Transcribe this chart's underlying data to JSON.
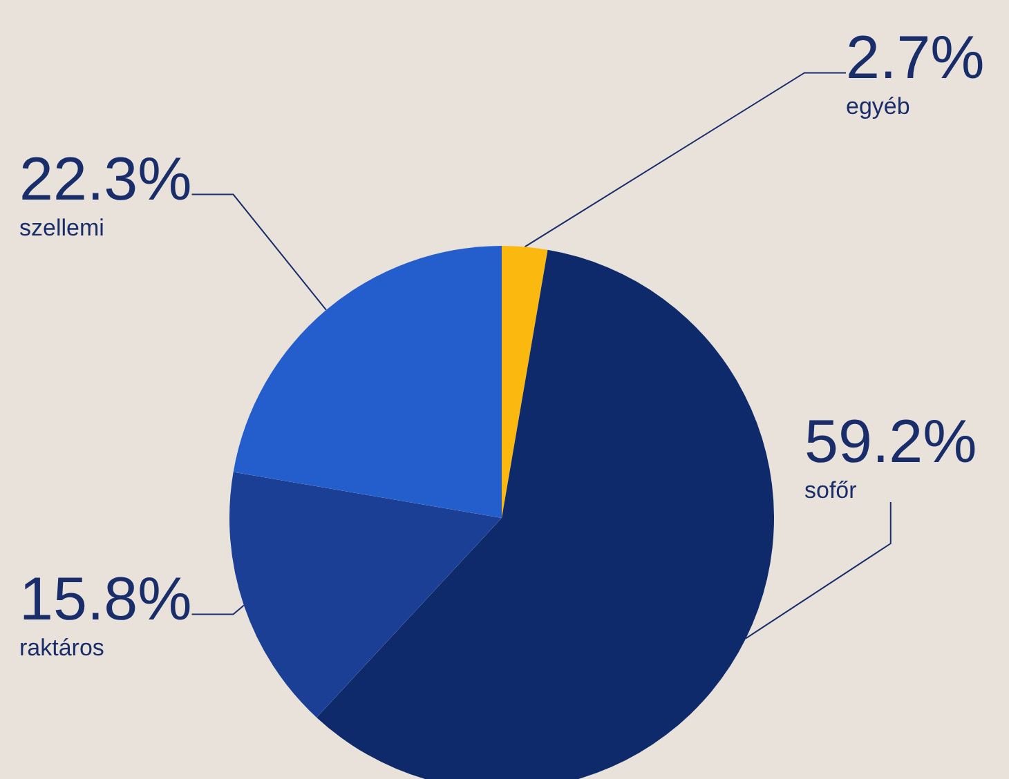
{
  "chart_data": {
    "type": "pie",
    "categories": [
      "egyéb",
      "sofőr",
      "raktáros",
      "szellemi"
    ],
    "values": [
      2.7,
      59.2,
      15.8,
      22.3
    ],
    "colors": [
      "#fbb80f",
      "#0f2a6b",
      "#1a3f94",
      "#245dcc"
    ],
    "value_labels": [
      "2.7%",
      "59.2%",
      "15.8%",
      "22.3%"
    ],
    "legend": false
  }
}
